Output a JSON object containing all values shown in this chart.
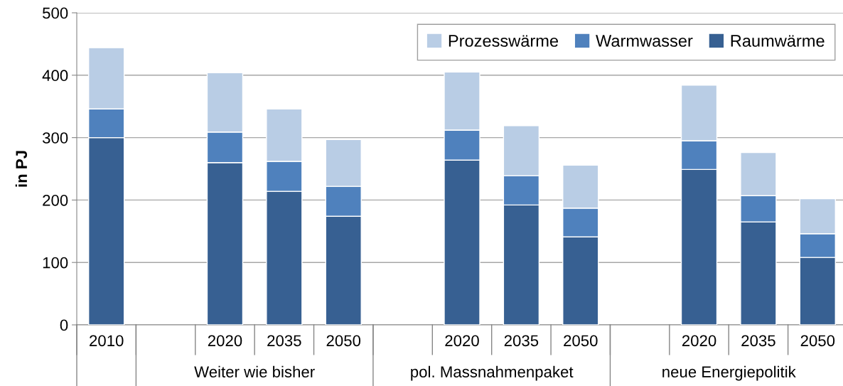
{
  "chart_data": {
    "type": "bar",
    "stacked": true,
    "ylabel": "in PJ",
    "categories": [
      "2010",
      null,
      "2020",
      "2035",
      "2050",
      null,
      "2020",
      "2035",
      "2050",
      null,
      "2020",
      "2035",
      "2050"
    ],
    "series": [
      {
        "name": "Raumwärme",
        "color": "#376092",
        "values": [
          300,
          null,
          260,
          214,
          174,
          null,
          264,
          192,
          141,
          null,
          249,
          165,
          108
        ]
      },
      {
        "name": "Warmwasser",
        "color": "#4f81bd",
        "values": [
          46,
          null,
          49,
          48,
          48,
          null,
          48,
          47,
          46,
          null,
          46,
          42,
          38
        ]
      },
      {
        "name": "Prozesswärme",
        "color": "#b9cde5",
        "values": [
          98,
          null,
          95,
          84,
          75,
          null,
          93,
          80,
          69,
          null,
          89,
          69,
          56
        ]
      }
    ],
    "ylim": [
      0,
      500
    ],
    "yticks": [
      0,
      100,
      200,
      300,
      400,
      500
    ],
    "grid": "y",
    "legend": "top right",
    "annotations": [
      "Weiter wie bisher",
      "pol. Massnahmenpaket",
      "neue Energiepolitik"
    ]
  }
}
